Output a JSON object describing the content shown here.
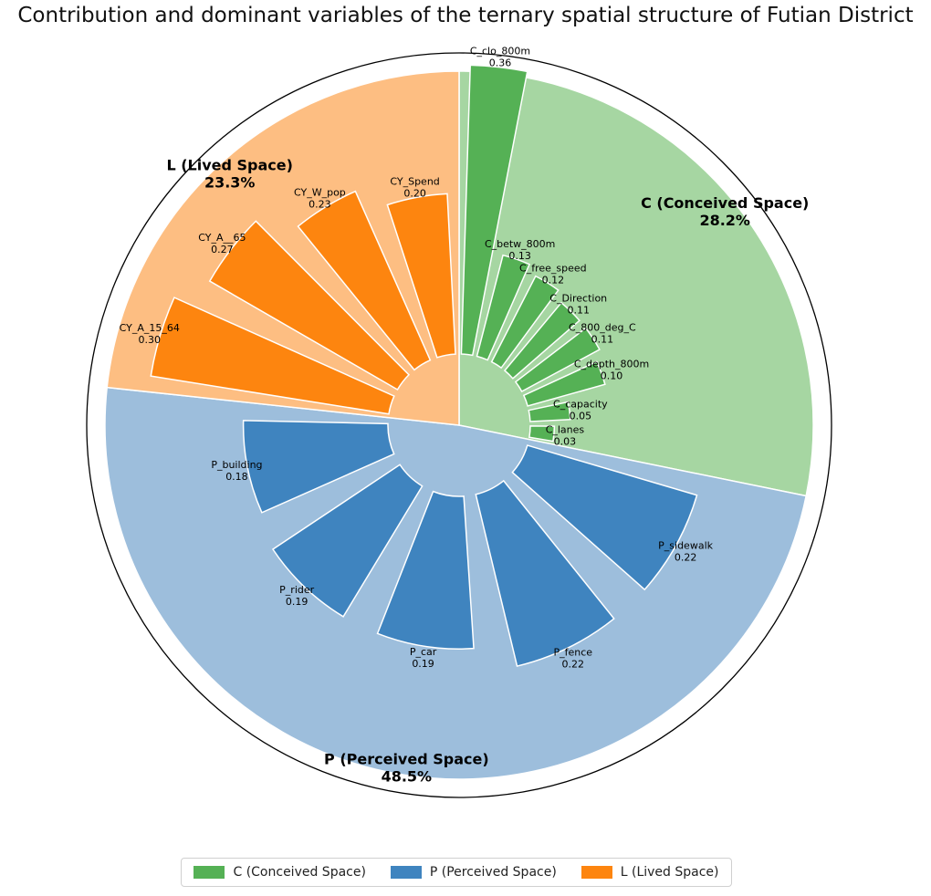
{
  "chart_data": {
    "type": "pie",
    "title": "Contribution and dominant variables of the ternary spatial structure of Futian District",
    "segments": [
      {
        "key": "C",
        "name": "C (Conceived Space)",
        "pct_label": "28.2%",
        "value": 28.2,
        "fill": "#a6d6a2",
        "bar_color": "#55b155",
        "variables": [
          {
            "name": "C_clo_800m",
            "value": 0.36,
            "value_label": "0.36"
          },
          {
            "name": "C_betw_800m",
            "value": 0.13,
            "value_label": "0.13"
          },
          {
            "name": "C_free_speed",
            "value": 0.12,
            "value_label": "0.12"
          },
          {
            "name": "C_Direction",
            "value": 0.11,
            "value_label": "0.11"
          },
          {
            "name": "C_800_deg_C",
            "value": 0.11,
            "value_label": "0.11"
          },
          {
            "name": "C_depth_800m",
            "value": 0.1,
            "value_label": "0.10"
          },
          {
            "name": "C_capacity",
            "value": 0.05,
            "value_label": "0.05"
          },
          {
            "name": "C_lanes",
            "value": 0.03,
            "value_label": "0.03"
          }
        ]
      },
      {
        "key": "P",
        "name": "P (Perceived Space)",
        "pct_label": "48.5%",
        "value": 48.5,
        "fill": "#9dbedc",
        "bar_color": "#3f84bf",
        "variables": [
          {
            "name": "P_sidewalk",
            "value": 0.22,
            "value_label": "0.22"
          },
          {
            "name": "P_fence",
            "value": 0.22,
            "value_label": "0.22"
          },
          {
            "name": "P_car",
            "value": 0.19,
            "value_label": "0.19"
          },
          {
            "name": "P_rider",
            "value": 0.19,
            "value_label": "0.19"
          },
          {
            "name": "P_building",
            "value": 0.18,
            "value_label": "0.18"
          }
        ]
      },
      {
        "key": "L",
        "name": "L (Lived Space)",
        "pct_label": "23.3%",
        "value": 23.3,
        "fill": "#fdbe82",
        "bar_color": "#fd850f",
        "variables": [
          {
            "name": "CY_A_15_64",
            "value": 0.3,
            "value_label": "0.30"
          },
          {
            "name": "CY_A__65",
            "value": 0.27,
            "value_label": "0.27"
          },
          {
            "name": "CY_W_pop",
            "value": 0.23,
            "value_label": "0.23"
          },
          {
            "name": "CY_Spend",
            "value": 0.2,
            "value_label": "0.20"
          }
        ]
      }
    ],
    "legend": {
      "placement": "bottom-center",
      "items": [
        {
          "label": "C (Conceived Space)",
          "color": "#55b155"
        },
        {
          "label": "P (Perceived Space)",
          "color": "#3f84bf"
        },
        {
          "label": "L (Lived Space)",
          "color": "#fd850f"
        }
      ]
    }
  }
}
